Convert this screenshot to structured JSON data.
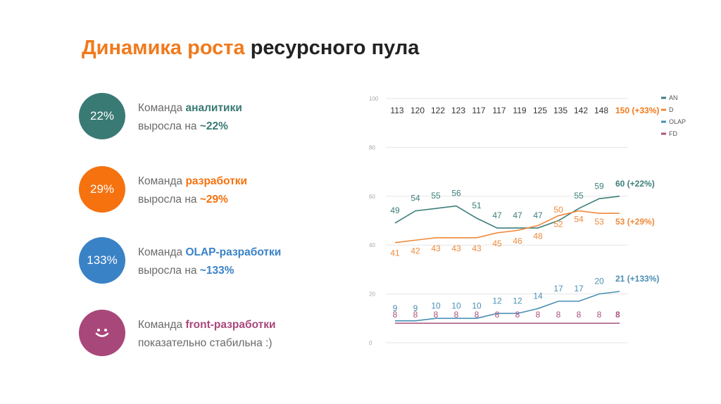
{
  "title": {
    "accent": "Динамика роста",
    "rest": "ресурсного пула"
  },
  "stats": [
    {
      "circle": "22%",
      "line1_prefix": "Команда ",
      "line1_highlight": "аналитики",
      "line2_prefix": "выросла на ",
      "line2_highlight": "~22%",
      "color": "#3a7a74"
    },
    {
      "circle": "29%",
      "line1_prefix": "Команда ",
      "line1_highlight": "разработки",
      "line2_prefix": "выросла на ",
      "line2_highlight": "~29%",
      "color": "#f5720f"
    },
    {
      "circle": "133%",
      "line1_prefix": "Команда ",
      "line1_highlight": "OLAP-разработки",
      "line2_prefix": "выросла на ",
      "line2_highlight": "~133%",
      "color": "#3a82c6"
    },
    {
      "circle": ":-)",
      "line1_prefix": "Команда ",
      "line1_highlight": "front-разработки",
      "line2_prefix": "показательно стабильна :)",
      "line2_highlight": "",
      "color": "#a8477a"
    }
  ],
  "chart_data": {
    "type": "line",
    "ylim": [
      0,
      100
    ],
    "yticks": [
      0,
      20,
      40,
      60,
      80,
      100
    ],
    "totals": [
      "113",
      "120",
      "122",
      "123",
      "117",
      "117",
      "119",
      "125",
      "135",
      "142",
      "148",
      "150 (+33%)"
    ],
    "totals_color": "#f07a1d",
    "legend_position": "top-right",
    "series": [
      {
        "name": "AN",
        "color": "#3c7e79",
        "values": [
          49,
          54,
          55,
          56,
          51,
          47,
          47,
          47,
          50,
          55,
          59,
          60
        ],
        "labels": [
          "49",
          "54",
          "55",
          "56",
          "51",
          "47",
          "47",
          "47",
          "",
          "55",
          "59",
          "60 (+22%)"
        ]
      },
      {
        "name": "D",
        "color": "#ee8a3c",
        "values": [
          41,
          42,
          43,
          43,
          43,
          45,
          46,
          48,
          52,
          54,
          53,
          53
        ],
        "labels": [
          "41",
          "42",
          "43",
          "43",
          "43",
          "45",
          "46",
          "48",
          "52",
          "54",
          "53",
          "53 (+29%)"
        ]
      },
      {
        "name": "OLAP",
        "color": "#4a8fb4",
        "values": [
          9,
          9,
          10,
          10,
          10,
          12,
          12,
          14,
          17,
          17,
          20,
          21
        ],
        "labels": [
          "9",
          "9",
          "10",
          "10",
          "10",
          "12",
          "12",
          "14",
          "17",
          "17",
          "20",
          "21 (+133%)"
        ]
      },
      {
        "name": "FD",
        "color": "#a9537e",
        "values": [
          8,
          8,
          8,
          8,
          8,
          8,
          8,
          8,
          8,
          8,
          8,
          8
        ],
        "labels": [
          "8",
          "8",
          "8",
          "8",
          "8",
          "8",
          "8",
          "8",
          "8",
          "8",
          "8",
          "8"
        ]
      }
    ],
    "extra_labels": [
      {
        "text": "50",
        "series": "AN",
        "index": 8
      }
    ]
  }
}
